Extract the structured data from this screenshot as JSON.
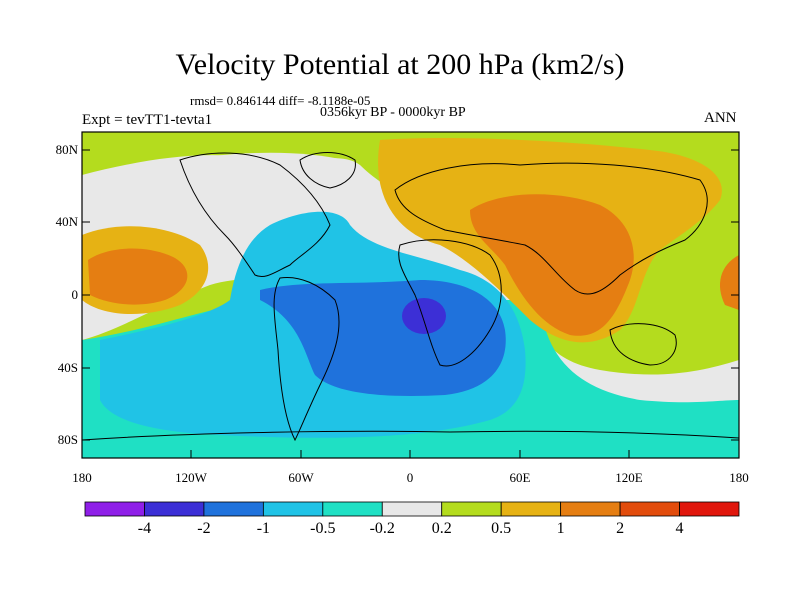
{
  "title": "Velocity Potential at 200 hPa (km2/s)",
  "stats": "rmsd= 0.846144 diff= -8.1188e-05",
  "period": "0356kyr BP - 0000kyr BP",
  "experiment": "Expt = tevTT1-tevta1",
  "season": "ANN",
  "lat_labels": [
    "80N",
    "40N",
    "0",
    "40S",
    "80S"
  ],
  "lon_labels": [
    "180",
    "120W",
    "60W",
    "0",
    "60E",
    "120E",
    "180"
  ],
  "colorbar": {
    "labels": [
      "-4",
      "-2",
      "-1",
      "-0.5",
      "-0.2",
      "0.2",
      "0.5",
      "1",
      "2",
      "4"
    ],
    "colors": [
      "#8f1fe8",
      "#3c2fd6",
      "#1f72dc",
      "#20c3e6",
      "#1fe0c4",
      "#e8e8e8",
      "#b4dc1e",
      "#e6b214",
      "#e57e12",
      "#e24c0c",
      "#e0160c"
    ]
  }
}
